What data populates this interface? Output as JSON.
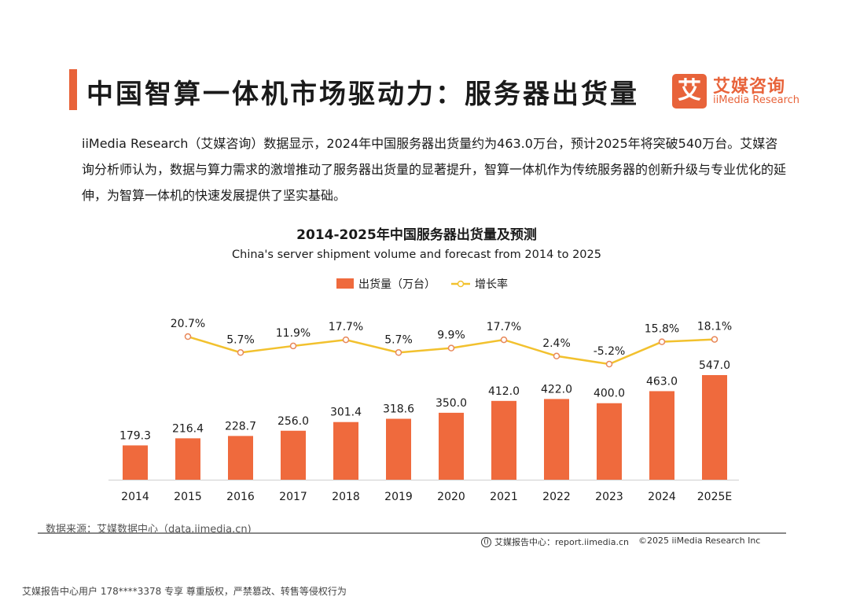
{
  "header": {
    "title": "中国智算一体机市场驱动力：服务器出货量"
  },
  "logo": {
    "mark": "艾",
    "name_cn": "艾媒咨询",
    "name_en": "iiMedia Research"
  },
  "intro": {
    "text": "iiMedia Research（艾媒咨询）数据显示，2024年中国服务器出货量约为463.0万台，预计2025年将突破540万台。艾媒咨询分析师认为，数据与算力需求的激增推动了服务器出货量的显著提升，智算一体机作为传统服务器的创新升级与专业优化的延伸，为智算一体机的快速发展提供了坚实基础。"
  },
  "chart_data": {
    "type": "bar",
    "title": "2014-2025年中国服务器出货量及预测",
    "subtitle": "China's server shipment volume and forecast from 2014 to 2025",
    "categories": [
      "2014",
      "2015",
      "2016",
      "2017",
      "2018",
      "2019",
      "2020",
      "2021",
      "2022",
      "2023",
      "2024",
      "2025E"
    ],
    "series": [
      {
        "name": "出货量（万台）",
        "type": "bar",
        "color": "#ef6a3d",
        "values": [
          179.3,
          216.4,
          228.7,
          256.0,
          301.4,
          318.6,
          350.0,
          412.0,
          422.0,
          400.0,
          463.0,
          547.0
        ],
        "labels": [
          "179.3",
          "216.4",
          "228.7",
          "256.0",
          "301.4",
          "318.6",
          "350.0",
          "412.0",
          "422.0",
          "400.0",
          "463.0",
          "547.0"
        ]
      },
      {
        "name": "增长率",
        "type": "line",
        "color": "#f2c12e",
        "values": [
          null,
          20.7,
          5.7,
          11.9,
          17.7,
          5.7,
          9.9,
          17.7,
          2.4,
          -5.2,
          15.8,
          18.1
        ],
        "labels": [
          "",
          "20.7%",
          "5.7%",
          "11.9%",
          "17.7%",
          "5.7%",
          "9.9%",
          "17.7%",
          "2.4%",
          "-5.2%",
          "15.8%",
          "18.1%"
        ]
      }
    ],
    "xlabel": "",
    "ylabel": "",
    "legend": "top-center"
  },
  "footer": {
    "source": "数据来源：艾媒数据中心（data.iimedia.cn)",
    "report": "艾媒报告中心：report.iimedia.cn",
    "copyright": "©2025  iiMedia Research  Inc",
    "watermark": "艾媒报告中心用户 178****3378 专享 尊重版权，严禁篡改、转售等侵权行为"
  }
}
